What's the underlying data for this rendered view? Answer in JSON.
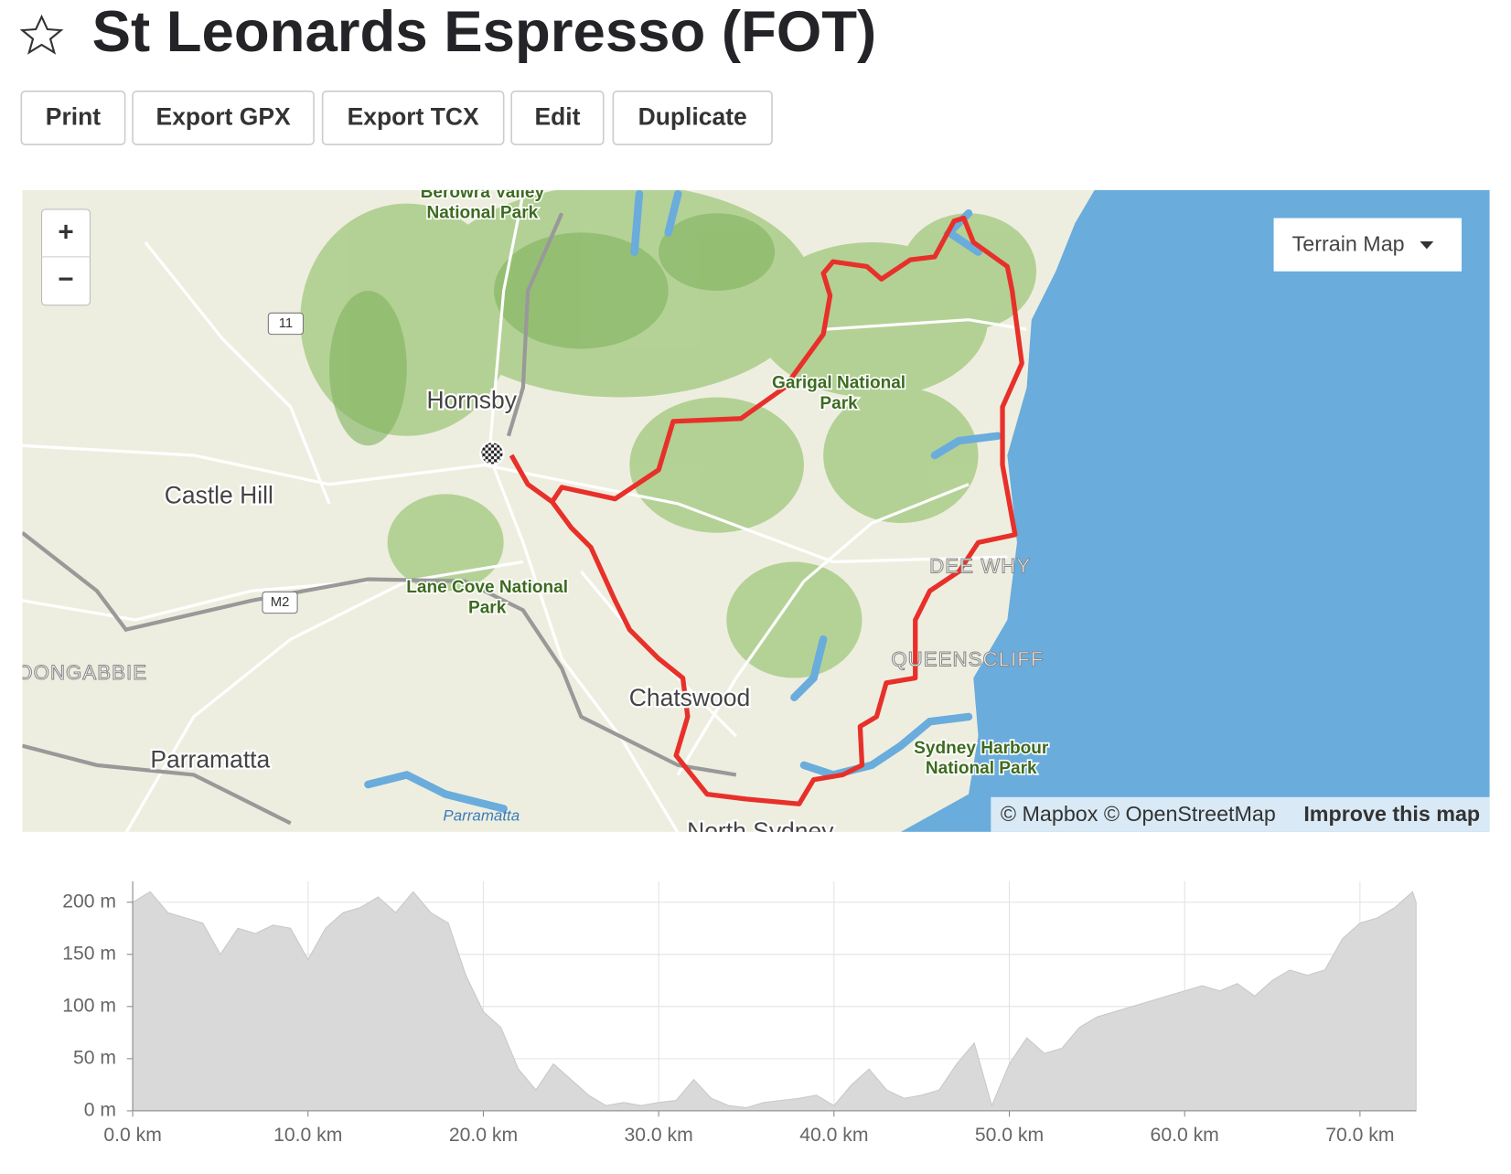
{
  "header": {
    "title": "St Leonards Espresso (FOT)",
    "buttons": [
      "Print",
      "Export GPX",
      "Export TCX",
      "Edit",
      "Duplicate"
    ]
  },
  "map": {
    "zoom_in": "+",
    "zoom_out": "−",
    "style_menu": "Terrain Map",
    "labels": [
      [
        "Berowra Valley",
        "National Park"
      ],
      [
        "Hornsby"
      ],
      [
        "Castle Hill"
      ],
      [
        "Garigal National",
        "Park"
      ],
      [
        "Lane Cove National",
        "Park"
      ],
      [
        "DEE WHY"
      ],
      [
        "QUEENSCLIFF"
      ],
      [
        "TOONGABBIE"
      ],
      [
        "Chatswood"
      ],
      [
        "Parramatta"
      ],
      [
        "Sydney Harbour",
        "National Park"
      ],
      [
        "Parramatta"
      ],
      [
        "North Sydney"
      ]
    ],
    "road_shields": [
      "11",
      "M2"
    ],
    "attribution": "© Mapbox © OpenStreetMap",
    "improve_link": "Improve this map"
  },
  "chart_data": {
    "type": "area",
    "color": "#d9d9d9",
    "x": [
      0,
      1,
      2,
      3,
      4,
      5,
      6,
      7,
      8,
      9,
      10,
      11,
      12,
      13,
      14,
      15,
      16,
      17,
      18,
      19,
      20,
      21,
      22,
      23,
      24,
      25,
      26,
      27,
      28,
      29,
      30,
      31,
      32,
      33,
      34,
      35,
      36,
      37,
      38,
      39,
      40,
      41,
      42,
      43,
      44,
      45,
      46,
      47,
      48,
      49,
      50,
      51,
      52,
      53,
      54,
      55,
      56,
      57,
      58,
      59,
      60,
      61,
      62,
      63,
      64,
      65,
      66,
      67,
      68,
      69,
      70,
      71,
      72,
      73,
      73.2
    ],
    "values": [
      200,
      210,
      190,
      185,
      180,
      150,
      175,
      170,
      178,
      175,
      145,
      175,
      190,
      195,
      205,
      190,
      210,
      190,
      180,
      130,
      95,
      80,
      40,
      20,
      45,
      30,
      15,
      5,
      8,
      5,
      8,
      10,
      30,
      12,
      5,
      3,
      8,
      10,
      12,
      15,
      5,
      25,
      40,
      20,
      12,
      15,
      20,
      45,
      65,
      5,
      45,
      70,
      55,
      60,
      80,
      90,
      95,
      100,
      105,
      110,
      115,
      120,
      115,
      122,
      110,
      125,
      135,
      130,
      135,
      165,
      180,
      185,
      195,
      210,
      200
    ],
    "xlim": [
      0,
      73.2
    ],
    "ylim": [
      0,
      220
    ],
    "xticks": [
      {
        "value": 0,
        "label": "0.0 km"
      },
      {
        "value": 10,
        "label": "10.0 km"
      },
      {
        "value": 20,
        "label": "20.0 km"
      },
      {
        "value": 30,
        "label": "30.0 km"
      },
      {
        "value": 40,
        "label": "40.0 km"
      },
      {
        "value": 50,
        "label": "50.0 km"
      },
      {
        "value": 60,
        "label": "60.0 km"
      },
      {
        "value": 70,
        "label": "70.0 km"
      }
    ],
    "yticks": [
      {
        "value": 0,
        "label": "0 m"
      },
      {
        "value": 50,
        "label": "50 m"
      },
      {
        "value": 100,
        "label": "100 m"
      },
      {
        "value": 150,
        "label": "150 m"
      },
      {
        "value": 200,
        "label": "200 m"
      }
    ],
    "grid": true
  }
}
